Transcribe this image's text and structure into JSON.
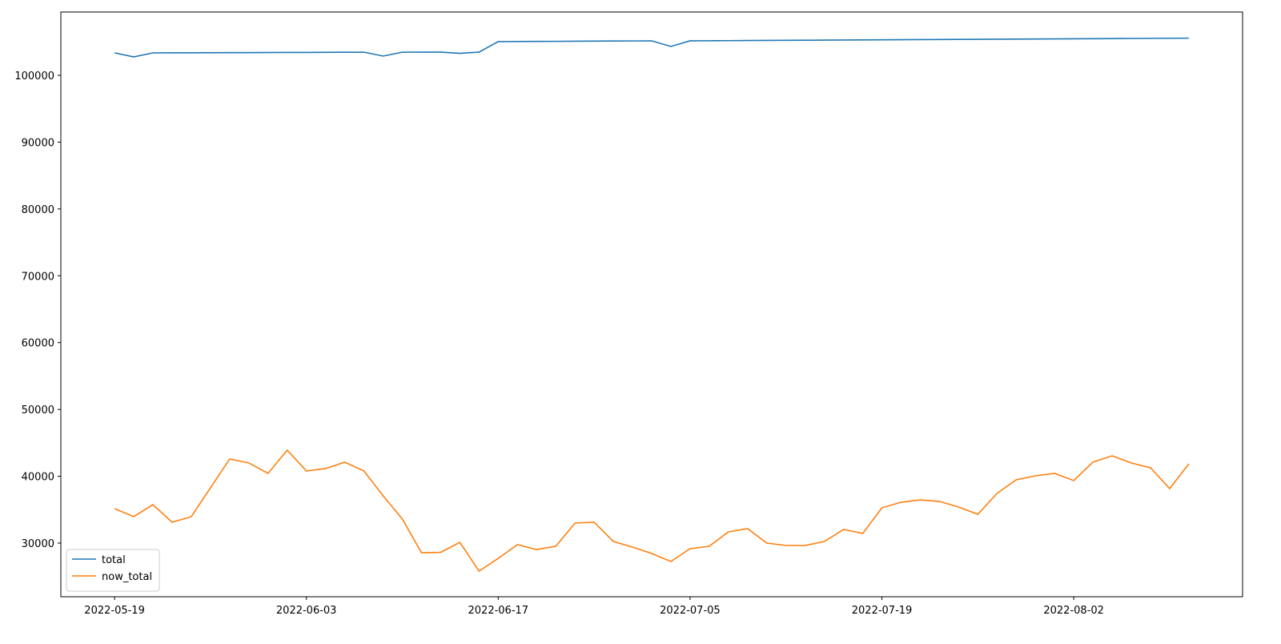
{
  "chart_data": {
    "type": "line",
    "categories": [
      "2022-05-19",
      null,
      null,
      null,
      null,
      null,
      null,
      null,
      null,
      null,
      "2022-06-03",
      null,
      null,
      null,
      null,
      null,
      null,
      null,
      null,
      null,
      "2022-06-17",
      null,
      null,
      null,
      null,
      null,
      null,
      null,
      null,
      null,
      "2022-07-05",
      null,
      null,
      null,
      null,
      null,
      null,
      null,
      null,
      null,
      "2022-07-19",
      null,
      null,
      null,
      null,
      null,
      null,
      null,
      null,
      null,
      "2022-08-02",
      null,
      null,
      null,
      null,
      null,
      null
    ],
    "series": [
      {
        "name": "total",
        "color": "#1f77b4",
        "values": [
          103356,
          102757,
          103356,
          103360,
          103370,
          103380,
          103390,
          103400,
          103410,
          103420,
          103430,
          103440,
          103450,
          103460,
          102880,
          103460,
          103470,
          103470,
          103290,
          103470,
          105040,
          105060,
          105070,
          105080,
          105100,
          105120,
          105130,
          105140,
          105150,
          104320,
          105160,
          105170,
          105186,
          105202,
          105217,
          105233,
          105248,
          105264,
          105280,
          105295,
          105311,
          105326,
          105342,
          105358,
          105373,
          105389,
          105404,
          105420,
          105436,
          105451,
          105467,
          105482,
          105498,
          105514,
          105529,
          105545,
          105560
        ]
      },
      {
        "name": "now_total",
        "color": "#ff7f0e",
        "values": [
          35150,
          33960,
          35750,
          33120,
          33960,
          38270,
          42590,
          41990,
          40430,
          43910,
          40790,
          41150,
          42110,
          40790,
          37070,
          33600,
          28560,
          28620,
          30120,
          25800,
          27720,
          29760,
          29040,
          29520,
          33000,
          33120,
          30240,
          29400,
          28440,
          27240,
          29160,
          29520,
          31680,
          32160,
          30000,
          29640,
          29640,
          30240,
          32040,
          31440,
          35270,
          36110,
          36470,
          36230,
          35390,
          34310,
          37430,
          39470,
          40070,
          40430,
          39350,
          42110,
          43060,
          41990,
          41270,
          38150,
          41870
        ]
      }
    ],
    "ylim": [
      21970,
      109470
    ],
    "yticks": [
      30000,
      40000,
      50000,
      60000,
      70000,
      80000,
      90000,
      100000
    ],
    "legend": "lower left"
  }
}
